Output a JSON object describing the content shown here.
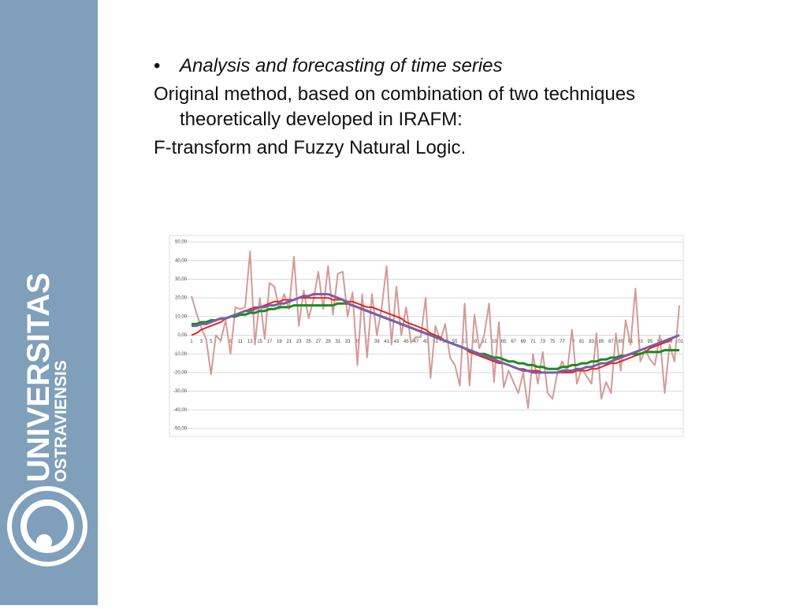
{
  "slide": {
    "bullet": "Analysis and forecasting of time series",
    "paragraphs": [
      "Original method, based on combination of two  techniques theoretically developed in IRAFM:",
      "F-transform and Fuzzy Natural Logic."
    ]
  },
  "logo": {
    "name": "UNIVERSITAS",
    "subname": "OSTRAVIENSIS"
  },
  "chart_data": {
    "type": "line",
    "categories": [
      "1",
      null,
      "3",
      null,
      "5",
      null,
      "7",
      null,
      "9",
      null,
      "11",
      null,
      "13",
      null,
      "15",
      null,
      "17",
      null,
      "19",
      null,
      "21",
      null,
      "23",
      null,
      "25",
      null,
      "27",
      null,
      "29",
      null,
      "31",
      null,
      "33",
      null,
      "35",
      null,
      "37",
      null,
      "39",
      null,
      "41",
      null,
      "43",
      null,
      "45",
      null,
      "47",
      null,
      "49",
      null,
      "51",
      null,
      "53",
      null,
      "55",
      null,
      "57",
      null,
      "59",
      null,
      "61",
      null,
      "63",
      null,
      "65",
      null,
      "67",
      null,
      "69",
      null,
      "71",
      null,
      "73",
      null,
      "75",
      null,
      "77",
      null,
      "79",
      null,
      "81",
      null,
      "83",
      null,
      "85",
      null,
      "87",
      null,
      "89",
      null,
      "91",
      null,
      "93",
      null,
      "95",
      null,
      "97",
      null,
      "99",
      null,
      "101"
    ],
    "series": [
      {
        "color": "#d49a99",
        "width": 2,
        "values": [
          21,
          12,
          4,
          -2,
          -21,
          0,
          -3,
          8,
          -10,
          15,
          14,
          15,
          45,
          -5,
          20,
          -2,
          28,
          26,
          14,
          22,
          14,
          42,
          5,
          24,
          9,
          19,
          34,
          14,
          37,
          11,
          33,
          34,
          10,
          23,
          -16,
          22,
          -12,
          22,
          0,
          15,
          37,
          -5,
          26,
          0,
          15,
          -4,
          -1,
          -1,
          20,
          -23,
          5,
          -3,
          6,
          -12,
          -16,
          -27,
          17,
          -27,
          11,
          -7,
          0,
          17,
          -25,
          7,
          -28,
          -19,
          -25,
          -31,
          -20,
          -39,
          -10,
          -26,
          -9,
          -31,
          -34,
          -20,
          -14,
          -20,
          3,
          -26,
          -18,
          -22,
          -26,
          1,
          -34,
          -25,
          -31,
          1,
          -19,
          8,
          -5,
          25,
          -14,
          -8,
          -13,
          -16,
          0,
          -31,
          -5,
          -14,
          16
        ]
      },
      {
        "color": "#e8241c",
        "width": 2,
        "values": [
          0,
          1,
          3,
          4,
          5,
          6,
          7,
          9,
          10,
          11,
          12,
          13,
          14,
          15,
          15,
          16,
          17,
          18,
          18,
          19,
          19,
          19,
          20,
          20,
          20,
          20,
          20,
          20,
          20,
          19,
          19,
          19,
          18,
          18,
          17,
          16,
          15,
          15,
          14,
          13,
          12,
          11,
          10,
          9,
          7,
          6,
          5,
          4,
          3,
          1,
          0,
          -1,
          -3,
          -4,
          -5,
          -6,
          -7,
          -9,
          -10,
          -11,
          -12,
          -13,
          -14,
          -15,
          -15,
          -16,
          -17,
          -18,
          -18,
          -19,
          -19,
          -19,
          -20,
          -20,
          -20,
          -20,
          -20,
          -20,
          -20,
          -19,
          -19,
          -19,
          -18,
          -18,
          -17,
          -16,
          -15,
          -15,
          -14,
          -13,
          -12,
          -11,
          -10,
          -9,
          -7,
          -6,
          -5,
          -4,
          -3,
          -1,
          0
        ]
      },
      {
        "color": "#1f8a1f",
        "width": 3,
        "values": [
          6,
          6,
          7,
          7,
          8,
          8,
          9,
          9,
          10,
          10,
          11,
          11,
          12,
          12,
          13,
          13,
          14,
          14,
          15,
          15,
          15,
          16,
          16,
          16,
          16,
          16,
          16,
          16,
          16,
          16,
          17,
          17,
          17,
          16,
          15,
          14,
          13,
          12,
          11,
          10,
          9,
          8,
          7,
          6,
          5,
          4,
          3,
          2,
          1,
          0,
          -1,
          -2,
          -3,
          -4,
          -5,
          -6,
          -7,
          -8,
          -9,
          -10,
          -10,
          -11,
          -12,
          -12,
          -13,
          -14,
          -14,
          -15,
          -15,
          -16,
          -16,
          -17,
          -17,
          -18,
          -18,
          -18,
          -17,
          -17,
          -16,
          -16,
          -15,
          -15,
          -14,
          -14,
          -13,
          -13,
          -12,
          -12,
          -11,
          -11,
          -10,
          -10,
          -10,
          -9,
          -9,
          -9,
          -9,
          -8,
          -8,
          -8,
          -8
        ]
      },
      {
        "color": "#7b5ea7",
        "width": 3,
        "values": [
          5,
          5,
          6,
          6,
          7,
          8,
          9,
          9,
          10,
          11,
          12,
          13,
          13,
          14,
          15,
          15,
          16,
          16,
          17,
          17,
          18,
          19,
          20,
          21,
          21,
          22,
          22,
          22,
          22,
          21,
          20,
          19,
          17,
          16,
          15,
          14,
          13,
          12,
          11,
          10,
          9,
          8,
          7,
          6,
          5,
          4,
          3,
          2,
          1,
          0,
          -1,
          -2,
          -3,
          -4,
          -5,
          -6,
          -7,
          -8,
          -9,
          -10,
          -11,
          -12,
          -13,
          -14,
          -15,
          -16,
          -17,
          -18,
          -19,
          -19,
          -20,
          -20,
          -20,
          -20,
          -20,
          -20,
          -19,
          -19,
          -19,
          -18,
          -18,
          -17,
          -17,
          -16,
          -15,
          -15,
          -14,
          -13,
          -12,
          -11,
          -10,
          -9,
          -8,
          -7,
          -6,
          -5,
          -4,
          -3,
          -2,
          -1,
          0
        ]
      }
    ],
    "ylim": [
      -50,
      50
    ],
    "yticks": [
      {
        "value": -50,
        "label": "-50,00"
      },
      {
        "value": -40,
        "label": "-40,00"
      },
      {
        "value": -30,
        "label": "-30,00"
      },
      {
        "value": -20,
        "label": "-20,00"
      },
      {
        "value": -10,
        "label": "-10,00"
      },
      {
        "value": 0,
        "label": "0,00"
      },
      {
        "value": 10,
        "label": "10,00"
      },
      {
        "value": 20,
        "label": "20,00"
      },
      {
        "value": 30,
        "label": "30,00"
      },
      {
        "value": 40,
        "label": "40,00"
      },
      {
        "value": 50,
        "label": "50,00"
      }
    ],
    "grid": true
  }
}
